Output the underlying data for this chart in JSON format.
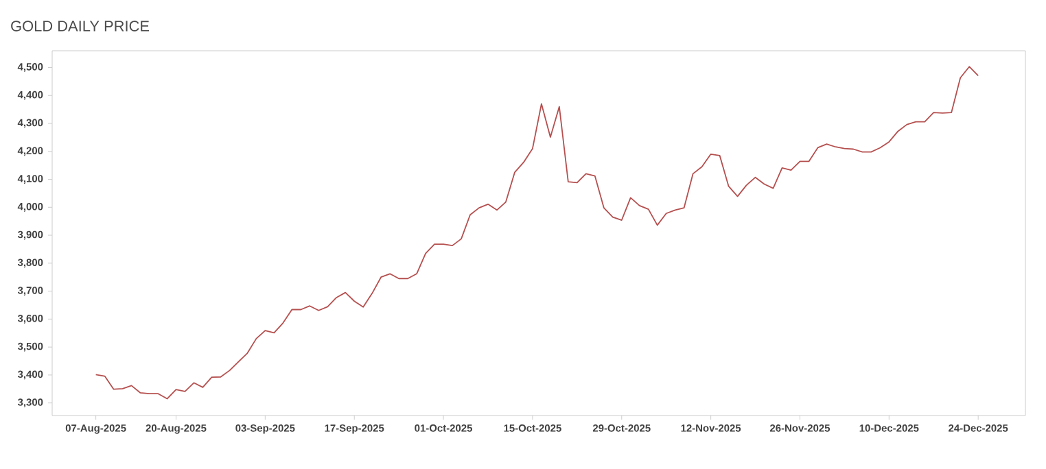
{
  "chart_data": {
    "type": "line",
    "title": "GOLD DAILY PRICE",
    "categories": [
      "07-Aug-2025",
      null,
      null,
      null,
      null,
      null,
      null,
      null,
      null,
      "20-Aug-2025",
      null,
      null,
      null,
      null,
      null,
      null,
      null,
      null,
      null,
      "03-Sep-2025",
      null,
      null,
      null,
      null,
      null,
      null,
      null,
      null,
      null,
      "17-Sep-2025",
      null,
      null,
      null,
      null,
      null,
      null,
      null,
      null,
      null,
      "01-Oct-2025",
      null,
      null,
      null,
      null,
      null,
      null,
      null,
      null,
      null,
      "15-Oct-2025",
      null,
      null,
      null,
      null,
      null,
      null,
      null,
      null,
      null,
      "29-Oct-2025",
      null,
      null,
      null,
      null,
      null,
      null,
      null,
      null,
      null,
      "12-Nov-2025",
      null,
      null,
      null,
      null,
      null,
      null,
      null,
      null,
      null,
      "26-Nov-2025",
      null,
      null,
      null,
      null,
      null,
      null,
      null,
      null,
      null,
      "10-Dec-2025",
      null,
      null,
      null,
      null,
      null,
      null,
      null,
      null,
      null,
      "24-Dec-2025"
    ],
    "series": [
      {
        "color": "#b5504f",
        "values": [
          3401,
          3396,
          3349,
          3351,
          3362,
          3336,
          3333,
          3333,
          3315,
          3348,
          3341,
          3372,
          3356,
          3392,
          3393,
          3416,
          3447,
          3478,
          3530,
          3559,
          3551,
          3586,
          3634,
          3634,
          3647,
          3631,
          3644,
          3677,
          3695,
          3664,
          3643,
          3692,
          3750,
          3762,
          3745,
          3745,
          3762,
          3835,
          3868,
          3868,
          3863,
          3887,
          3973,
          3998,
          4011,
          3990,
          4019,
          4125,
          4161,
          4210,
          4370,
          4251,
          4360,
          4091,
          4088,
          4120,
          4112,
          3998,
          3965,
          3954,
          4034,
          4006,
          3993,
          3936,
          3978,
          3990,
          3998,
          4120,
          4145,
          4190,
          4185,
          4075,
          4039,
          4079,
          4107,
          4083,
          4068,
          4141,
          4133,
          4164,
          4164,
          4213,
          4226,
          4216,
          4210,
          4208,
          4198,
          4198,
          4213,
          4234,
          4272,
          4296,
          4306,
          4306,
          4339,
          4337,
          4339,
          4463,
          4503,
          4471
        ]
      }
    ],
    "ylim": [
      3255,
      4560
    ],
    "yticks": [
      {
        "value": 3300,
        "label": "3,300"
      },
      {
        "value": 3400,
        "label": "3,400"
      },
      {
        "value": 3500,
        "label": "3,500"
      },
      {
        "value": 3600,
        "label": "3,600"
      },
      {
        "value": 3700,
        "label": "3,700"
      },
      {
        "value": 3800,
        "label": "3,800"
      },
      {
        "value": 3900,
        "label": "3,900"
      },
      {
        "value": 4000,
        "label": "4,000"
      },
      {
        "value": 4100,
        "label": "4,100"
      },
      {
        "value": 4200,
        "label": "4,200"
      },
      {
        "value": 4300,
        "label": "4,300"
      },
      {
        "value": 4400,
        "label": "4,400"
      },
      {
        "value": 4500,
        "label": "4,500"
      }
    ],
    "grid": false,
    "marker": "none",
    "line_style": "solid"
  }
}
